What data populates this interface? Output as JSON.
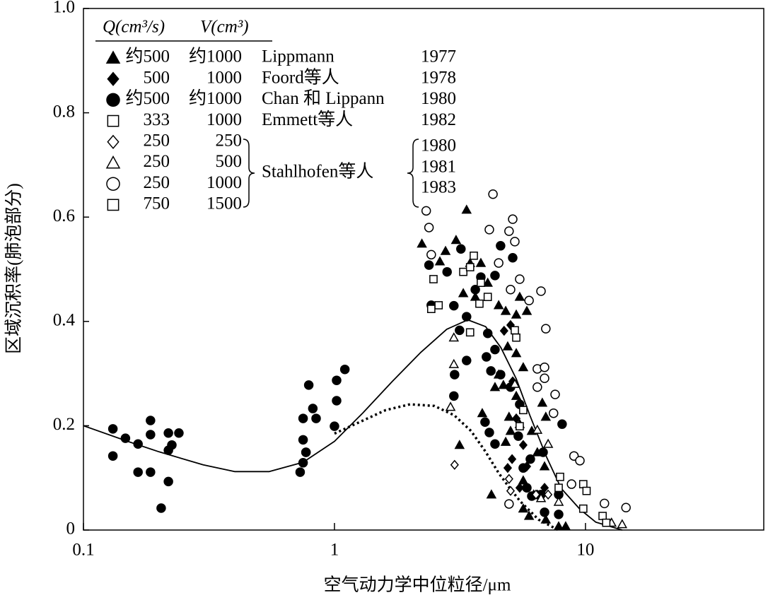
{
  "chart_data": {
    "type": "scatter",
    "xlabel": "空气动力学中位粒径/μm",
    "ylabel": "区域沉积率(肺泡部分)",
    "xscale": "log",
    "xlim": [
      0.1,
      50
    ],
    "xticks": [
      0.1,
      1,
      10
    ],
    "ylim": [
      0,
      1
    ],
    "yticks": [
      0,
      0.2,
      0.4,
      0.6,
      0.8,
      {
        "value": 1,
        "label": "1.0"
      }
    ],
    "legend_header": [
      "Q(cm³/s)",
      "V(cm³)"
    ],
    "group_label": {
      "name": "Stahlhofen等人",
      "years": [
        "1980",
        "1981",
        "1983"
      ]
    },
    "series": [
      {
        "q": "约500",
        "v": "约1000",
        "name": "Lippmann",
        "year": "1977",
        "marker": "triangle",
        "color": "#000000",
        "filled": true,
        "x": [
          2.23,
          2.77,
          3.36,
          2.63,
          3.05,
          3.47,
          3.83,
          4.08,
          3.26,
          3.64,
          4.51,
          4.81,
          5.3,
          5.47,
          5.84,
          4.9,
          5.3,
          5.65,
          4.51,
          4.71,
          4.36,
          3.15,
          3.88,
          4.96,
          5.03,
          5.47,
          6.11,
          6.43,
          6.87,
          5.65,
          6.22,
          5.65,
          5.96,
          6.95,
          7.82,
          8.34,
          6.73,
          6.95,
          5.3,
          4.81,
          4.22
        ],
        "y": [
          0.549,
          0.535,
          0.614,
          0.515,
          0.556,
          0.512,
          0.512,
          0.474,
          0.454,
          0.447,
          0.431,
          0.42,
          0.413,
          0.447,
          0.42,
          0.352,
          0.339,
          0.312,
          0.298,
          0.278,
          0.274,
          0.163,
          0.224,
          0.217,
          0.19,
          0.203,
          0.19,
          0.149,
          0.122,
          0.095,
          0.068,
          0.041,
          0.027,
          0.02,
          0.007,
          0.007,
          0.244,
          0.217,
          0.257,
          0.169,
          0.068
        ]
      },
      {
        "q": "500",
        "v": "1000",
        "name": "Foord等人",
        "year": "1978",
        "marker": "diamond",
        "color": "#000000",
        "filled": true,
        "x": [
          4.74,
          5.03,
          5.13,
          5.3,
          4.9,
          5.1,
          5.65,
          5.84,
          6.43,
          6.87,
          5.47
        ],
        "y": [
          0.382,
          0.393,
          0.285,
          0.214,
          0.119,
          0.136,
          0.163,
          0.122,
          0.068,
          0.081,
          0.081
        ]
      },
      {
        "q": "约500",
        "v": "约1000",
        "name": "Chan 和 Lippann",
        "year": "1980",
        "marker": "circle",
        "color": "#000000",
        "filled": true,
        "x": [
          0.131,
          0.147,
          0.165,
          0.185,
          0.185,
          0.218,
          0.24,
          0.218,
          0.225,
          0.131,
          0.165,
          0.185,
          0.218,
          0.204,
          0.73,
          0.75,
          0.75,
          0.75,
          0.77,
          0.79,
          0.77,
          0.82,
          0.845,
          1.0,
          1.02,
          1.02,
          1.1,
          2.38,
          2.81,
          3.19,
          3.64,
          2.43,
          2.99,
          3.36,
          3.15,
          3.83,
          4.36,
          4.59,
          5.13,
          4.08,
          4.36,
          4.03,
          3.36,
          3.01,
          2.99,
          4.2,
          4.59,
          5.03,
          3.98,
          4.14,
          4.36,
          5.47,
          5.4,
          6.03,
          5.65,
          6.78,
          5.84,
          6.11,
          6.65,
          8.07,
          7.82,
          6.87,
          7.82
        ],
        "y": [
          0.194,
          0.176,
          0.165,
          0.21,
          0.183,
          0.186,
          0.186,
          0.153,
          0.163,
          0.142,
          0.111,
          0.111,
          0.093,
          0.042,
          0.111,
          0.129,
          0.214,
          0.173,
          0.149,
          0.278,
          0.149,
          0.233,
          0.214,
          0.199,
          0.248,
          0.287,
          0.308,
          0.508,
          0.495,
          0.539,
          0.461,
          0.431,
          0.43,
          0.409,
          0.383,
          0.485,
          0.488,
          0.545,
          0.522,
          0.377,
          0.346,
          0.332,
          0.325,
          0.298,
          0.257,
          0.305,
          0.298,
          0.274,
          0.207,
          0.187,
          0.165,
          0.241,
          0.18,
          0.136,
          0.119,
          0.149,
          0.081,
          0.065,
          0.068,
          0.203,
          0.068,
          0.034,
          0.03
        ]
      },
      {
        "q": "333",
        "v": "1000",
        "name": "Emmett等人",
        "year": "1982",
        "marker": "square",
        "color": "#000000",
        "filled": false,
        "x": [
          2.48,
          2.6,
          2.43,
          3.26,
          3.47,
          3.59,
          3.83,
          4.08,
          3.78,
          3.47,
          5.23
        ],
        "y": [
          0.481,
          0.431,
          0.424,
          0.495,
          0.504,
          0.526,
          0.474,
          0.447,
          0.434,
          0.379,
          0.383
        ]
      },
      {
        "q": "250",
        "v": "250",
        "marker": "diamond",
        "color": "#000000",
        "filled": false,
        "x": [
          3.01,
          4.96,
          5.03,
          6.35,
          7.1
        ],
        "y": [
          0.125,
          0.098,
          0.075,
          0.068,
          0.068
        ]
      },
      {
        "q": "250",
        "v": "500",
        "marker": "triangle",
        "color": "#000000",
        "filled": false,
        "x": [
          2.99,
          2.99,
          2.9,
          5.23,
          6.43,
          7.1,
          6.65,
          7.82,
          12.7,
          14.0
        ],
        "y": [
          0.369,
          0.318,
          0.236,
          0.28,
          0.192,
          0.165,
          0.061,
          0.054,
          0.014,
          0.011
        ]
      },
      {
        "q": "250",
        "v": "1000",
        "marker": "circle",
        "color": "#000000",
        "filled": false,
        "x": [
          2.32,
          2.38,
          2.43,
          4.28,
          4.14,
          5.13,
          4.96,
          5.23,
          4.51,
          5.47,
          5.03,
          5.96,
          6.65,
          6.95,
          6.43,
          6.87,
          6.87,
          7.57,
          7.46,
          6.43,
          9.0,
          9.5,
          8.8,
          11.9,
          14.5,
          4.96
        ],
        "y": [
          0.612,
          0.58,
          0.528,
          0.644,
          0.576,
          0.596,
          0.573,
          0.553,
          0.512,
          0.481,
          0.461,
          0.44,
          0.458,
          0.386,
          0.309,
          0.312,
          0.291,
          0.26,
          0.224,
          0.274,
          0.142,
          0.133,
          0.088,
          0.051,
          0.043,
          0.05
        ]
      },
      {
        "q": "750",
        "v": "1500",
        "marker": "square",
        "color": "#000000",
        "filled": false,
        "x": [
          5.3,
          5.65,
          5.47,
          7.92,
          7.82,
          9.8,
          10.1,
          9.8,
          11.7,
          12.1
        ],
        "y": [
          0.369,
          0.23,
          0.199,
          0.102,
          0.081,
          0.088,
          0.075,
          0.041,
          0.027,
          0.014
        ]
      }
    ],
    "curves": [
      {
        "style": "solid",
        "color": "#000000",
        "x": [
          0.1,
          0.15,
          0.2,
          0.3,
          0.4,
          0.55,
          0.75,
          1,
          1.3,
          1.7,
          2.2,
          2.8,
          3.4,
          4,
          4.6,
          5.3,
          6,
          7,
          8,
          9.5,
          11,
          14
        ],
        "y": [
          0.2,
          0.17,
          0.15,
          0.125,
          0.112,
          0.112,
          0.13,
          0.17,
          0.225,
          0.285,
          0.34,
          0.385,
          0.403,
          0.39,
          0.35,
          0.29,
          0.22,
          0.14,
          0.08,
          0.04,
          0.015,
          0
        ]
      },
      {
        "style": "dotted",
        "color": "#000000",
        "x": [
          1,
          1.3,
          1.6,
          2,
          2.5,
          3,
          3.5,
          4,
          4.5,
          5,
          5.5,
          6.5,
          7.8
        ],
        "y": [
          0.185,
          0.21,
          0.23,
          0.241,
          0.238,
          0.22,
          0.19,
          0.15,
          0.11,
          0.08,
          0.055,
          0.02,
          0
        ]
      }
    ]
  }
}
